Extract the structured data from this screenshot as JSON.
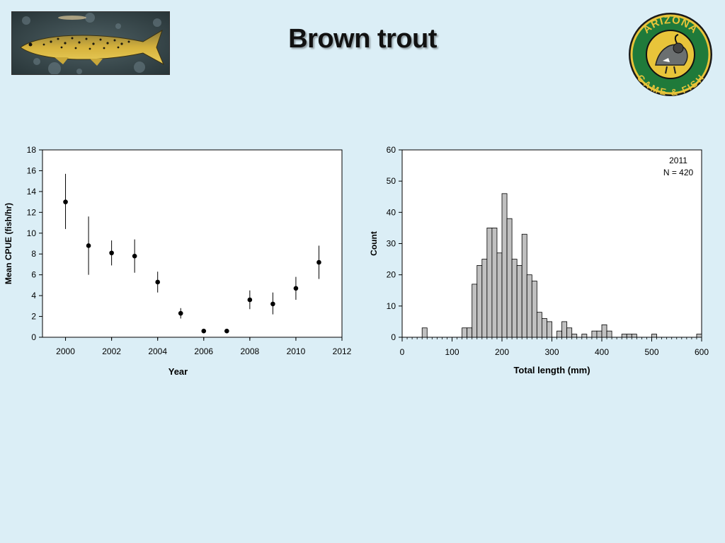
{
  "slide": {
    "title": "Brown trout"
  },
  "colors": {
    "background": "#dbeef6",
    "marker": "#000000",
    "bar_fill": "#c0c0c0",
    "bar_stroke": "#000000",
    "logo_green": "#1f7a3a",
    "logo_yellow": "#e8c43a"
  },
  "logo": {
    "alt_icon": "arizona-game-and-fish-logo-icon",
    "text_top": "ARIZONA",
    "text_bottom": "GAME & FISH"
  },
  "chart_data": [
    {
      "type": "scatter",
      "error_bars": true,
      "xlabel": "Year",
      "ylabel": "Mean CPUE (fish/hr)",
      "xlim": [
        1999,
        2012
      ],
      "ylim": [
        0,
        18
      ],
      "x_ticks": [
        2000,
        2002,
        2004,
        2006,
        2008,
        2010,
        2012
      ],
      "y_ticks": [
        0,
        2,
        4,
        6,
        8,
        10,
        12,
        14,
        16,
        18
      ],
      "grid": false,
      "points": [
        {
          "x": 2000,
          "y": 13.0,
          "low": 10.4,
          "high": 15.7
        },
        {
          "x": 2001,
          "y": 8.8,
          "low": 6.0,
          "high": 11.6
        },
        {
          "x": 2002,
          "y": 8.1,
          "low": 6.9,
          "high": 9.3
        },
        {
          "x": 2003,
          "y": 7.8,
          "low": 6.2,
          "high": 9.4
        },
        {
          "x": 2004,
          "y": 5.3,
          "low": 4.3,
          "high": 6.3
        },
        {
          "x": 2005,
          "y": 2.3,
          "low": 1.8,
          "high": 2.8
        },
        {
          "x": 2006,
          "y": 0.6,
          "low": 0.5,
          "high": 0.7
        },
        {
          "x": 2007,
          "y": 0.6,
          "low": 0.5,
          "high": 0.7
        },
        {
          "x": 2008,
          "y": 3.6,
          "low": 2.7,
          "high": 4.5
        },
        {
          "x": 2009,
          "y": 3.2,
          "low": 2.2,
          "high": 4.3
        },
        {
          "x": 2010,
          "y": 4.7,
          "low": 3.6,
          "high": 5.8
        },
        {
          "x": 2011,
          "y": 7.2,
          "low": 5.6,
          "high": 8.8
        }
      ]
    },
    {
      "type": "bar",
      "subtype": "histogram",
      "xlabel": "Total length (mm)",
      "ylabel": "Count",
      "xlim": [
        0,
        600
      ],
      "ylim": [
        0,
        60
      ],
      "x_ticks": [
        0,
        100,
        200,
        300,
        400,
        500,
        600
      ],
      "y_ticks": [
        0,
        10,
        20,
        30,
        40,
        50,
        60
      ],
      "bin_width": 10,
      "annotation_lines": [
        "2011",
        "N = 420"
      ],
      "annotation_position": "top-right",
      "grid": false,
      "bins": [
        {
          "x": 45,
          "count": 3
        },
        {
          "x": 125,
          "count": 3
        },
        {
          "x": 135,
          "count": 3
        },
        {
          "x": 145,
          "count": 17
        },
        {
          "x": 155,
          "count": 23
        },
        {
          "x": 165,
          "count": 25
        },
        {
          "x": 175,
          "count": 35
        },
        {
          "x": 185,
          "count": 35
        },
        {
          "x": 195,
          "count": 27
        },
        {
          "x": 205,
          "count": 46
        },
        {
          "x": 215,
          "count": 38
        },
        {
          "x": 225,
          "count": 25
        },
        {
          "x": 235,
          "count": 23
        },
        {
          "x": 245,
          "count": 33
        },
        {
          "x": 255,
          "count": 20
        },
        {
          "x": 265,
          "count": 18
        },
        {
          "x": 275,
          "count": 8
        },
        {
          "x": 285,
          "count": 6
        },
        {
          "x": 295,
          "count": 5
        },
        {
          "x": 315,
          "count": 2
        },
        {
          "x": 325,
          "count": 5
        },
        {
          "x": 335,
          "count": 3
        },
        {
          "x": 345,
          "count": 1
        },
        {
          "x": 365,
          "count": 1
        },
        {
          "x": 385,
          "count": 2
        },
        {
          "x": 395,
          "count": 2
        },
        {
          "x": 405,
          "count": 4
        },
        {
          "x": 415,
          "count": 2
        },
        {
          "x": 445,
          "count": 1
        },
        {
          "x": 455,
          "count": 1
        },
        {
          "x": 465,
          "count": 1
        },
        {
          "x": 505,
          "count": 1
        },
        {
          "x": 595,
          "count": 1
        }
      ]
    }
  ]
}
